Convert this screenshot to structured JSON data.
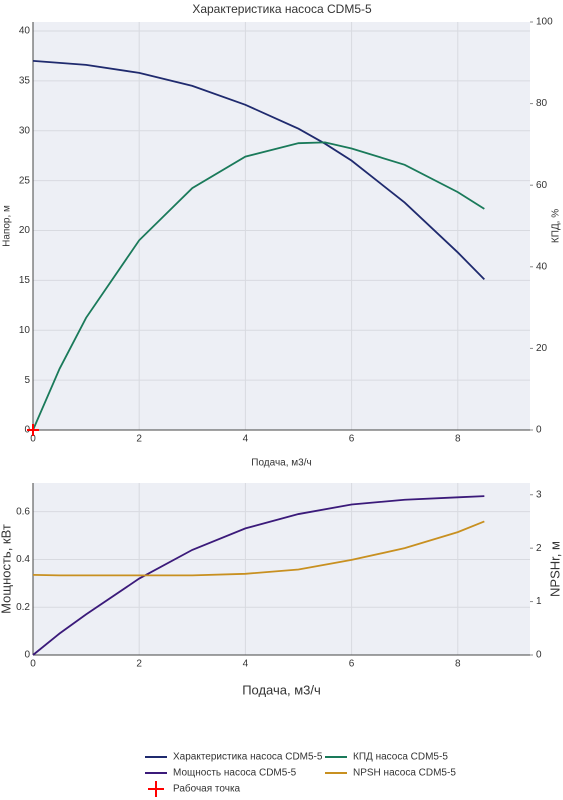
{
  "chart_data": [
    {
      "type": "line",
      "title": "Характеристика насоса CDM5-5",
      "x_label": "Подача, м3/ч",
      "y_label": "Напор, м",
      "y2_label": "КПД, %",
      "x": [
        0,
        0.5,
        1,
        2,
        3,
        4,
        5,
        5.5,
        6,
        7,
        8,
        8.5
      ],
      "series": [
        {
          "name": "Характеристика насоса CDM5-5",
          "color": "#1f2a6e",
          "values": [
            37,
            36.8,
            36.6,
            35.8,
            34.5,
            32.6,
            30.2,
            28.7,
            27,
            22.8,
            17.8,
            15.1
          ]
        },
        {
          "name": "КПД насоса CDM5-5",
          "color": "#1a7a5a",
          "axis": "y2",
          "values": [
            0,
            15,
            27.5,
            46.5,
            59.3,
            67,
            70.3,
            70.5,
            69,
            65,
            58.3,
            54.2
          ]
        },
        {
          "name": "Рабочая точка",
          "color": "#ff0000",
          "marker": "cross",
          "x": [
            0
          ],
          "values": [
            0
          ]
        }
      ],
      "xlim": [
        0,
        9.36
      ],
      "xticks": [
        0,
        2,
        4,
        6,
        8
      ],
      "ylim": [
        0,
        40.9
      ],
      "yticks": [
        0,
        5,
        10,
        15,
        20,
        25,
        30,
        35,
        40
      ],
      "y2lim": [
        0,
        100
      ],
      "y2ticks": [
        0,
        20,
        40,
        60,
        80,
        100
      ],
      "grid": true
    },
    {
      "type": "line",
      "x_label": "Подача, м3/ч",
      "y_label": "Мощность, кВт",
      "y2_label": "NPSHr, м",
      "x": [
        0,
        0.5,
        1,
        2,
        3,
        4,
        5,
        6,
        7,
        8,
        8.5
      ],
      "series": [
        {
          "name": "Мощность насоса CDM5-5",
          "color": "#3b1a7a",
          "values": [
            0,
            0.09,
            0.17,
            0.32,
            0.44,
            0.53,
            0.59,
            0.63,
            0.65,
            0.66,
            0.665
          ]
        },
        {
          "name": "NPSH насоса CDM5-5",
          "color": "#c89020",
          "axis": "y2",
          "values": [
            1.5,
            1.49,
            1.49,
            1.49,
            1.49,
            1.52,
            1.6,
            1.78,
            2.0,
            2.3,
            2.5
          ]
        }
      ],
      "xlim": [
        0,
        9.36
      ],
      "xticks": [
        0,
        2,
        4,
        6,
        8
      ],
      "ylim": [
        0,
        0.72
      ],
      "yticks": [
        0,
        0.2,
        0.4,
        0.6
      ],
      "y2lim": [
        0,
        3.22
      ],
      "y2ticks": [
        0,
        1,
        2,
        3
      ],
      "grid": true
    }
  ]
}
